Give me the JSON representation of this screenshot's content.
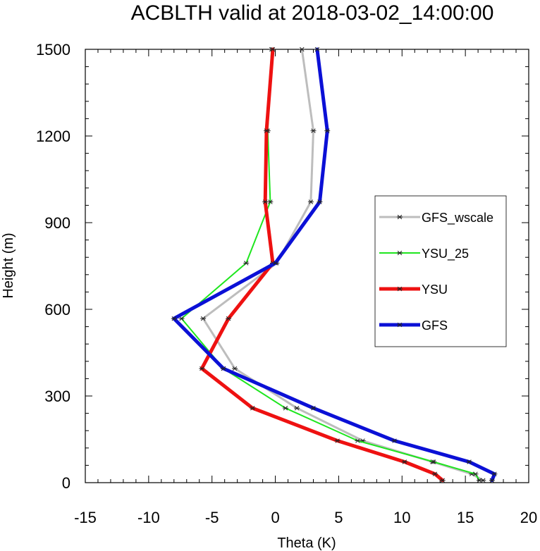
{
  "chart_data": {
    "type": "line",
    "title": "ACBLTH valid at 2018-03-02_14:00:00",
    "xlabel": "Theta (K)",
    "ylabel": "Height (m)",
    "xlim": [
      -15,
      20
    ],
    "ylim": [
      0,
      1500
    ],
    "xticks": [
      -15,
      -10,
      -5,
      0,
      5,
      10,
      15,
      20
    ],
    "yticks": [
      0,
      300,
      600,
      900,
      1200,
      1500
    ],
    "legend_position": "right",
    "grid": false,
    "series": [
      {
        "name": "GFS_wscale",
        "color": "#bdbdbd",
        "line_width": 3,
        "points": [
          [
            16.4,
            8
          ],
          [
            15.5,
            30
          ],
          [
            12.4,
            72
          ],
          [
            6.9,
            145
          ],
          [
            1.7,
            258
          ],
          [
            -3.2,
            395
          ],
          [
            -5.7,
            568
          ],
          [
            0.1,
            760
          ],
          [
            2.8,
            972
          ],
          [
            3.0,
            1218
          ],
          [
            2.1,
            1500
          ]
        ]
      },
      {
        "name": "YSU_25",
        "color": "#1ee61e",
        "line_width": 2,
        "points": [
          [
            16.1,
            8
          ],
          [
            15.8,
            30
          ],
          [
            12.5,
            72
          ],
          [
            6.5,
            145
          ],
          [
            0.8,
            258
          ],
          [
            -4.1,
            395
          ],
          [
            -7.4,
            568
          ],
          [
            -2.3,
            760
          ],
          [
            -0.4,
            972
          ],
          [
            -0.6,
            1218
          ],
          [
            -0.3,
            1500
          ]
        ]
      },
      {
        "name": "YSU",
        "color": "#ee1111",
        "line_width": 5,
        "points": [
          [
            13.2,
            8
          ],
          [
            12.6,
            30
          ],
          [
            10.2,
            72
          ],
          [
            4.9,
            145
          ],
          [
            -1.8,
            258
          ],
          [
            -5.8,
            395
          ],
          [
            -3.7,
            568
          ],
          [
            -0.2,
            760
          ],
          [
            -0.8,
            972
          ],
          [
            -0.7,
            1218
          ],
          [
            -0.2,
            1500
          ]
        ]
      },
      {
        "name": "GFS",
        "color": "#0b10d6",
        "line_width": 5,
        "points": [
          [
            17.1,
            8
          ],
          [
            17.3,
            30
          ],
          [
            15.3,
            72
          ],
          [
            9.4,
            145
          ],
          [
            3.0,
            258
          ],
          [
            -4.1,
            395
          ],
          [
            -8.0,
            568
          ],
          [
            0.0,
            760
          ],
          [
            3.5,
            972
          ],
          [
            4.1,
            1218
          ],
          [
            3.3,
            1500
          ]
        ]
      }
    ]
  }
}
